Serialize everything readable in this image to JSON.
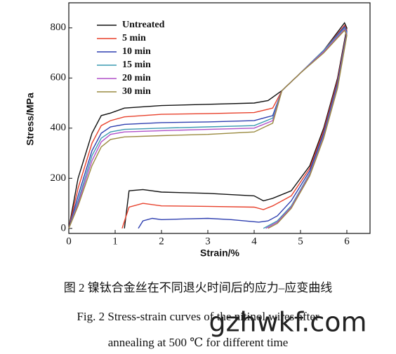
{
  "chart_data": {
    "type": "line",
    "x_label": "Strain/%",
    "y_label": "Stress/MPa",
    "xlim": [
      0,
      6.5
    ],
    "ylim": [
      -20,
      900
    ],
    "xticks": [
      0,
      1,
      2,
      3,
      4,
      5,
      6
    ],
    "yticks": [
      0,
      200,
      400,
      600,
      800
    ],
    "legend": "upper left",
    "series": [
      {
        "name": "Untreated",
        "color": "#111111",
        "x": [
          0,
          0.2,
          0.5,
          0.7,
          0.9,
          1.2,
          2,
          3,
          4,
          4.3,
          4.6,
          5,
          5.5,
          5.95,
          6,
          5.8,
          5.5,
          5.2,
          4.8,
          4.4,
          4.2,
          4,
          3,
          2,
          1.6,
          1.3,
          1.2
        ],
        "values": [
          0,
          200,
          380,
          450,
          460,
          480,
          490,
          495,
          500,
          510,
          550,
          620,
          710,
          820,
          800,
          600,
          400,
          250,
          150,
          120,
          110,
          130,
          140,
          145,
          155,
          150,
          0
        ]
      },
      {
        "name": "5 min",
        "color": "#e8412c",
        "x": [
          0,
          0.2,
          0.5,
          0.7,
          0.9,
          1.2,
          2,
          3,
          4,
          4.4,
          4.6,
          5,
          5.5,
          5.95,
          6,
          5.8,
          5.5,
          5.2,
          4.8,
          4.4,
          4.2,
          4,
          3,
          2,
          1.6,
          1.3,
          1.15
        ],
        "values": [
          0,
          160,
          340,
          410,
          430,
          445,
          455,
          458,
          462,
          480,
          550,
          620,
          710,
          810,
          790,
          590,
          390,
          240,
          130,
          90,
          75,
          85,
          88,
          90,
          100,
          85,
          0
        ]
      },
      {
        "name": "10 min",
        "color": "#2e3fb0",
        "x": [
          0,
          0.2,
          0.5,
          0.7,
          0.9,
          1.2,
          2,
          3,
          4,
          4.4,
          4.6,
          5,
          5.5,
          5.95,
          6,
          5.8,
          5.5,
          5.2,
          4.8,
          4.5,
          4.3,
          4.1,
          3.5,
          3,
          2.5,
          2,
          1.8,
          1.6,
          1.5
        ],
        "values": [
          0,
          130,
          310,
          380,
          405,
          415,
          422,
          425,
          430,
          450,
          550,
          620,
          710,
          805,
          785,
          580,
          380,
          230,
          110,
          50,
          30,
          25,
          35,
          40,
          38,
          35,
          40,
          30,
          0
        ]
      },
      {
        "name": "15 min",
        "color": "#3a9ab0",
        "x": [
          0,
          0.2,
          0.5,
          0.7,
          0.9,
          1.2,
          2,
          3,
          4,
          4.4,
          4.6,
          5,
          5.5,
          5.95,
          6,
          5.8,
          5.5,
          5.2,
          4.8,
          4.5,
          4.2
        ],
        "values": [
          0,
          110,
          290,
          360,
          385,
          395,
          400,
          405,
          410,
          440,
          550,
          620,
          710,
          800,
          780,
          570,
          370,
          220,
          90,
          30,
          0
        ]
      },
      {
        "name": "20 min",
        "color": "#b050c8",
        "x": [
          0,
          0.2,
          0.5,
          0.7,
          0.9,
          1.2,
          2,
          3,
          4,
          4.4,
          4.6,
          5,
          5.5,
          5.95,
          6,
          5.8,
          5.5,
          5.2,
          4.8,
          4.5,
          4.25
        ],
        "values": [
          0,
          100,
          270,
          345,
          375,
          385,
          390,
          395,
          400,
          430,
          550,
          620,
          705,
          795,
          775,
          565,
          365,
          215,
          85,
          25,
          0
        ]
      },
      {
        "name": "30 min",
        "color": "#9a8a40",
        "x": [
          0,
          0.2,
          0.5,
          0.7,
          0.9,
          1.2,
          2,
          3,
          4,
          4.4,
          4.6,
          5,
          5.5,
          5.95,
          6,
          5.8,
          5.5,
          5.2,
          4.8,
          4.5,
          4.3
        ],
        "values": [
          0,
          90,
          250,
          325,
          355,
          365,
          370,
          375,
          385,
          420,
          550,
          620,
          700,
          790,
          770,
          560,
          360,
          210,
          80,
          20,
          0
        ]
      }
    ]
  },
  "caption": {
    "zh": "图 2   镍钛合金丝在不同退火时间后的应力–应变曲线",
    "en": [
      "Fig. 2    Stress-strain curves of the nitinol wires after",
      "annealing at 500 ℃ for different time"
    ]
  },
  "watermark": "gzhwkf.com"
}
